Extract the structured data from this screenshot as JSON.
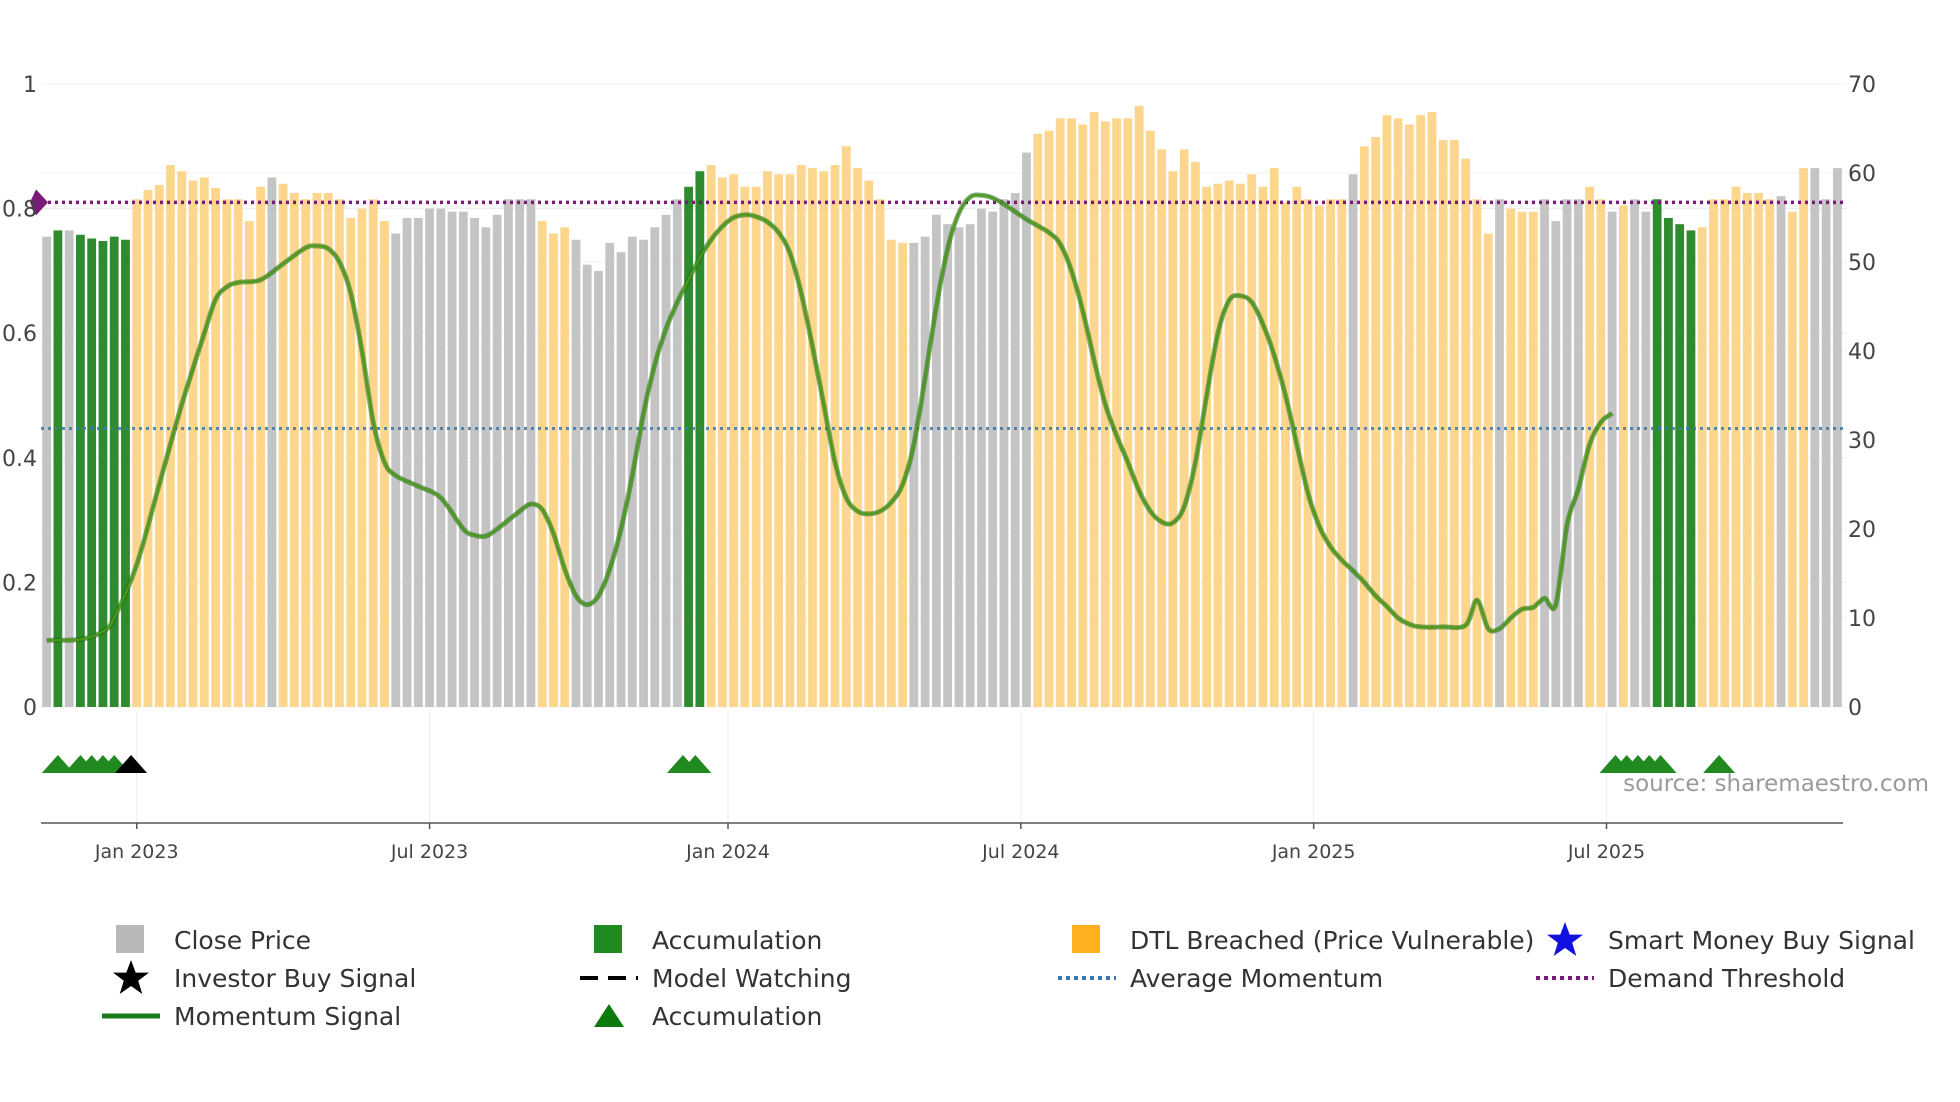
{
  "chart_data": {
    "type": "bar+line",
    "source_label": "source: sharemaestro.com",
    "left_axis": {
      "ticks": [
        "0",
        "0.2",
        "0.4",
        "0.6",
        "0.8",
        "1"
      ],
      "range": [
        0,
        1
      ]
    },
    "right_axis": {
      "ticks": [
        "0",
        "10",
        "20",
        "30",
        "40",
        "50",
        "60",
        "70"
      ],
      "range": [
        0,
        70
      ]
    },
    "x_ticks": [
      {
        "label": "Jan 2023",
        "bar_index": 8
      },
      {
        "label": "Jul 2023",
        "bar_index": 34
      },
      {
        "label": "Jan 2024",
        "bar_index": 60.5
      },
      {
        "label": "Jul 2024",
        "bar_index": 86.5
      },
      {
        "label": "Jan 2025",
        "bar_index": 112.5
      },
      {
        "label": "Jul 2025",
        "bar_index": 138.5
      }
    ],
    "demand_threshold": 0.81,
    "average_momentum": 0.447,
    "bars": {
      "colors": {
        "G": "#c4c4c4",
        "A": "#2e8b2e",
        "O": "#fdd68e"
      },
      "states": "GAGAAAAAOOOOOOOOOOOOGOOOOOOOOOOGGGGGGGGGGGGGOOOGGGGGGGGGGAAOOOOOOOOOOOOOOOOOOGGGGGGGGGGGOOOOOOOOOOOOOOOOOOOOOOOOOOOOGOOOOOOOOOOOOGOOOGGGGOOGOGGAAAAOOOOOOOGOO",
      "values": [
        0.755,
        0.765,
        0.765,
        0.758,
        0.752,
        0.748,
        0.755,
        0.75,
        0.815,
        0.83,
        0.838,
        0.87,
        0.86,
        0.845,
        0.85,
        0.833,
        0.815,
        0.815,
        0.78,
        0.835,
        0.85,
        0.84,
        0.825,
        0.815,
        0.825,
        0.825,
        0.815,
        0.785,
        0.8,
        0.815,
        0.78,
        0.76,
        0.785,
        0.785,
        0.8,
        0.8,
        0.795,
        0.795,
        0.785,
        0.77,
        0.79,
        0.815,
        0.815,
        0.815,
        0.78,
        0.76,
        0.77,
        0.75,
        0.71,
        0.7,
        0.745,
        0.73,
        0.755,
        0.75,
        0.77,
        0.79,
        0.815,
        0.835,
        0.86,
        0.87,
        0.85,
        0.855,
        0.835,
        0.835,
        0.86,
        0.855,
        0.855,
        0.87,
        0.865,
        0.86,
        0.87,
        0.9,
        0.865,
        0.845,
        0.815,
        0.75,
        0.745,
        0.745,
        0.755,
        0.79,
        0.775,
        0.77,
        0.775,
        0.8,
        0.795,
        0.815,
        0.825,
        0.89,
        0.92,
        0.925,
        0.945,
        0.945,
        0.935,
        0.955,
        0.94,
        0.945,
        0.945,
        0.965,
        0.925,
        0.895,
        0.86,
        0.895,
        0.875,
        0.835,
        0.84,
        0.845,
        0.84,
        0.855,
        0.835,
        0.865,
        0.81,
        0.835,
        0.815,
        0.805,
        0.815,
        0.815,
        0.855,
        0.9,
        0.915,
        0.95,
        0.945,
        0.935,
        0.95,
        0.955,
        0.91,
        0.91,
        0.88,
        0.815,
        0.76,
        0.815,
        0.8,
        0.795,
        0.795,
        0.815,
        0.78,
        0.815,
        0.815,
        0.835,
        0.815,
        0.795,
        0.805,
        0.815,
        0.795,
        0.815,
        0.785,
        0.775,
        0.765,
        0.77,
        0.815,
        0.815,
        0.835,
        0.825,
        0.825,
        0.815,
        0.82,
        0.795,
        0.865,
        0.865,
        0.815,
        0.865
      ]
    },
    "momentum": {
      "axis": "right",
      "points": [
        [
          0,
          7.5
        ],
        [
          3,
          7.6
        ],
        [
          5,
          8.5
        ],
        [
          6,
          10
        ],
        [
          8,
          16
        ],
        [
          10,
          25
        ],
        [
          12,
          34
        ],
        [
          14,
          42
        ],
        [
          15,
          45.8
        ],
        [
          16,
          47.2
        ],
        [
          17,
          47.7
        ],
        [
          19,
          48
        ],
        [
          21,
          49.8
        ],
        [
          23,
          51.6
        ],
        [
          24,
          51.8
        ],
        [
          25,
          51.5
        ],
        [
          26,
          50
        ],
        [
          27,
          46.5
        ],
        [
          28,
          40
        ],
        [
          29,
          32
        ],
        [
          30,
          27.5
        ],
        [
          31,
          26
        ],
        [
          33,
          24.8
        ],
        [
          35,
          23.5
        ],
        [
          37,
          20
        ],
        [
          38,
          19.3
        ],
        [
          39,
          19.2
        ],
        [
          40,
          20
        ],
        [
          42,
          22
        ],
        [
          43,
          22.8
        ],
        [
          44,
          22.2
        ],
        [
          45,
          19.5
        ],
        [
          46,
          15.5
        ],
        [
          47,
          12.5
        ],
        [
          48,
          11.5
        ],
        [
          49,
          12.5
        ],
        [
          50,
          15.5
        ],
        [
          51,
          20
        ],
        [
          52,
          26
        ],
        [
          53,
          33
        ],
        [
          54,
          38.5
        ],
        [
          55,
          42.5
        ],
        [
          56,
          45.5
        ],
        [
          57,
          48
        ],
        [
          58,
          50.5
        ],
        [
          59,
          52.5
        ],
        [
          60,
          54
        ],
        [
          61,
          55
        ],
        [
          62,
          55.3
        ],
        [
          63,
          55.1
        ],
        [
          64,
          54.5
        ],
        [
          65,
          53.3
        ],
        [
          66,
          51
        ],
        [
          67,
          46.5
        ],
        [
          68,
          40.5
        ],
        [
          69,
          34
        ],
        [
          70,
          27.5
        ],
        [
          71,
          23.5
        ],
        [
          72,
          22
        ],
        [
          73,
          21.7
        ],
        [
          74,
          22
        ],
        [
          75,
          23
        ],
        [
          76,
          25
        ],
        [
          77,
          29.5
        ],
        [
          78,
          37
        ],
        [
          79,
          45
        ],
        [
          80,
          51.5
        ],
        [
          81,
          55.5
        ],
        [
          82,
          57.3
        ],
        [
          83,
          57.5
        ],
        [
          84,
          57.2
        ],
        [
          85,
          56.5
        ],
        [
          87,
          54.8
        ],
        [
          89,
          53.3
        ],
        [
          90,
          52
        ],
        [
          91,
          49
        ],
        [
          92,
          44.5
        ],
        [
          93,
          39
        ],
        [
          94,
          34
        ],
        [
          95,
          30.5
        ],
        [
          96,
          27.5
        ],
        [
          97,
          24.3
        ],
        [
          98,
          22
        ],
        [
          99,
          20.8
        ],
        [
          100,
          20.7
        ],
        [
          101,
          22.5
        ],
        [
          102,
          27.5
        ],
        [
          103,
          35
        ],
        [
          104,
          42
        ],
        [
          105,
          45.7
        ],
        [
          106,
          46.2
        ],
        [
          107,
          45.5
        ],
        [
          108,
          43
        ],
        [
          109,
          39.5
        ],
        [
          110,
          35
        ],
        [
          111,
          29.5
        ],
        [
          112,
          24
        ],
        [
          113,
          20.3
        ],
        [
          114,
          18
        ],
        [
          115,
          16.5
        ],
        [
          116,
          15.3
        ],
        [
          117,
          14
        ],
        [
          118,
          12.5
        ],
        [
          119,
          11.3
        ],
        [
          120,
          10
        ],
        [
          121,
          9.3
        ],
        [
          122,
          9
        ],
        [
          124,
          9
        ],
        [
          126,
          9.2
        ],
        [
          127,
          12
        ],
        [
          128,
          8.8
        ],
        [
          129,
          8.8
        ],
        [
          130,
          10
        ],
        [
          131,
          11
        ],
        [
          132,
          11.2
        ],
        [
          133,
          12.2
        ],
        [
          134,
          11.5
        ],
        [
          135,
          20.5
        ],
        [
          136,
          24.5
        ],
        [
          137,
          29.5
        ],
        [
          138,
          32
        ],
        [
          139,
          33
        ]
      ]
    },
    "signal_markers": [
      {
        "type": "accumulation-triangle",
        "bar_index": 1
      },
      {
        "type": "accumulation-triangle",
        "bar_index": 3
      },
      {
        "type": "accumulation-triangle",
        "bar_index": 4
      },
      {
        "type": "accumulation-triangle",
        "bar_index": 5
      },
      {
        "type": "accumulation-triangle",
        "bar_index": 6
      },
      {
        "type": "investor-buy-triangle",
        "bar_index": 7.5
      },
      {
        "type": "accumulation-triangle",
        "bar_index": 56.5
      },
      {
        "type": "accumulation-triangle",
        "bar_index": 57.6
      },
      {
        "type": "accumulation-triangle",
        "bar_index": 139.3
      },
      {
        "type": "accumulation-triangle",
        "bar_index": 140.3
      },
      {
        "type": "accumulation-triangle",
        "bar_index": 141.3
      },
      {
        "type": "accumulation-triangle",
        "bar_index": 142.3
      },
      {
        "type": "accumulation-triangle",
        "bar_index": 143.3
      },
      {
        "type": "accumulation-triangle",
        "bar_index": 148.5
      }
    ],
    "legend": [
      {
        "symbol": "gray-square",
        "label": "Close Price"
      },
      {
        "symbol": "green-square",
        "label": "Accumulation"
      },
      {
        "symbol": "orange-square",
        "label": "DTL Breached (Price Vulnerable)"
      },
      {
        "symbol": "blue-star",
        "label": "Smart Money Buy Signal"
      },
      {
        "symbol": "black-star",
        "label": "Investor Buy Signal"
      },
      {
        "symbol": "black-dash",
        "label": "Model Watching"
      },
      {
        "symbol": "blue-dotted",
        "label": "Average Momentum"
      },
      {
        "symbol": "purple-dotted",
        "label": "Demand Threshold"
      },
      {
        "symbol": "green-line",
        "label": "Momentum Signal"
      },
      {
        "symbol": "green-triangle",
        "label": "Accumulation"
      }
    ]
  },
  "colors": {
    "close_price": "#c4c4c4",
    "accumulation": "#2e8b2e",
    "dtl_breached": "#fdd68e",
    "momentum_line": "#2f8a1e",
    "average_momentum": "#3d79a8",
    "demand_threshold": "#7a1a7a",
    "smart_money_star": "#1010e0",
    "investor_star": "#000000",
    "signal_triangle": "#208a20"
  }
}
